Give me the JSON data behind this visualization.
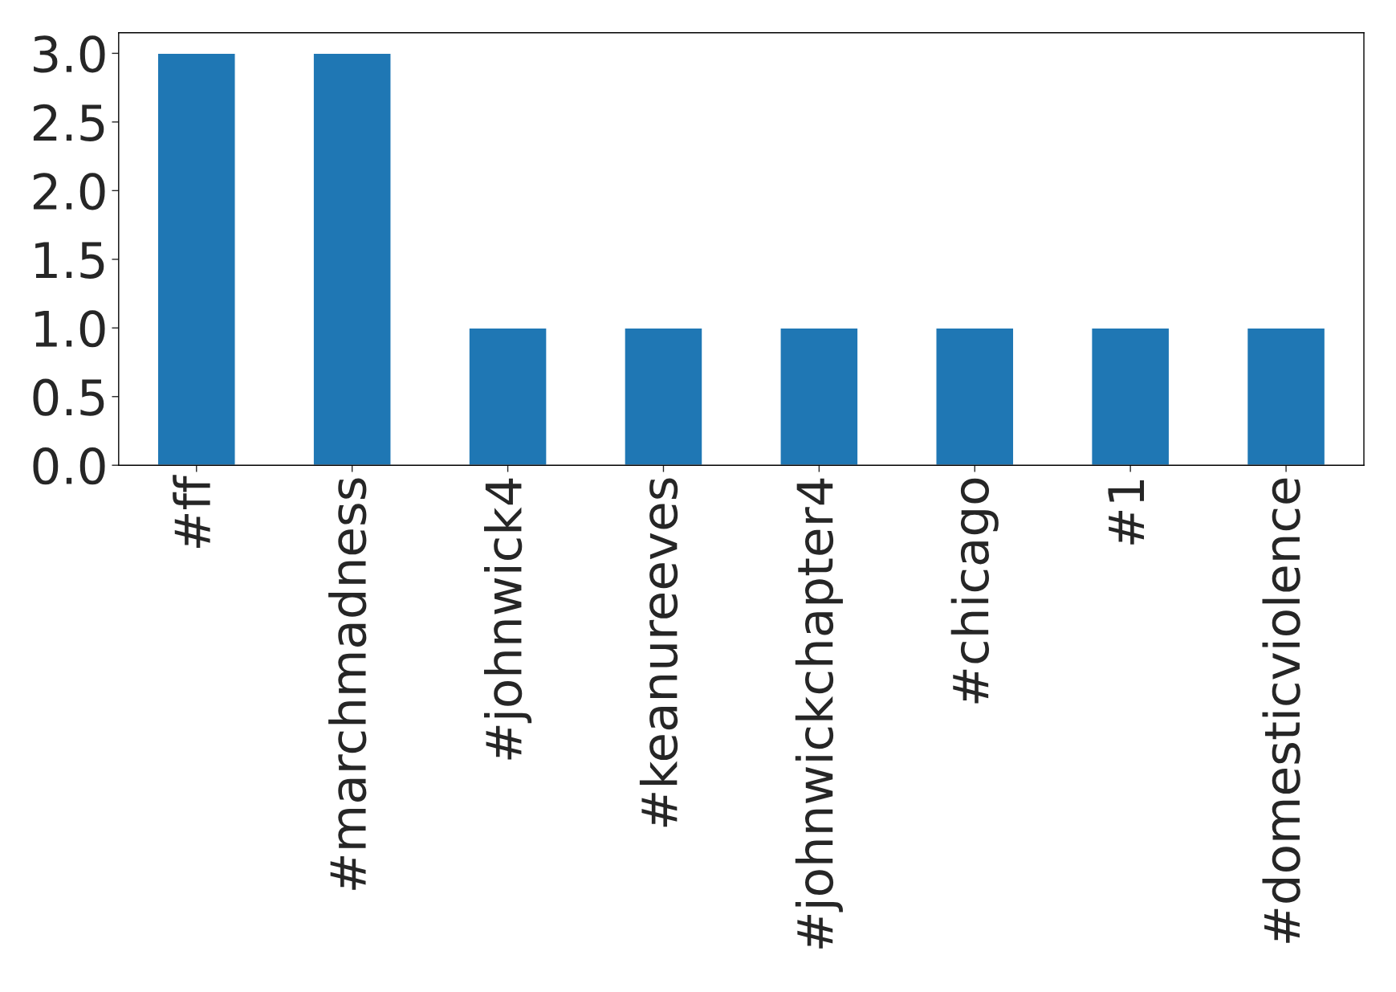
{
  "chart_data": {
    "type": "bar",
    "categories": [
      "#ff",
      "#marchmadness",
      "#johnwick4",
      "#keanureeves",
      "#johnwickchapter4",
      "#chicago",
      "#1",
      "#domesticviolence"
    ],
    "values": [
      3,
      3,
      1,
      1,
      1,
      1,
      1,
      1
    ],
    "color": "#1f77b4",
    "ylim": [
      0,
      3.15
    ],
    "yticks": [
      {
        "value": 0,
        "label": "0.0"
      },
      {
        "value": 0.5,
        "label": "0.5"
      },
      {
        "value": 1,
        "label": "1.0"
      },
      {
        "value": 1.5,
        "label": "1.5"
      },
      {
        "value": 2,
        "label": "2.0"
      },
      {
        "value": 2.5,
        "label": "2.5"
      },
      {
        "value": 3,
        "label": "3.0"
      }
    ],
    "grid": false,
    "legend": false
  }
}
